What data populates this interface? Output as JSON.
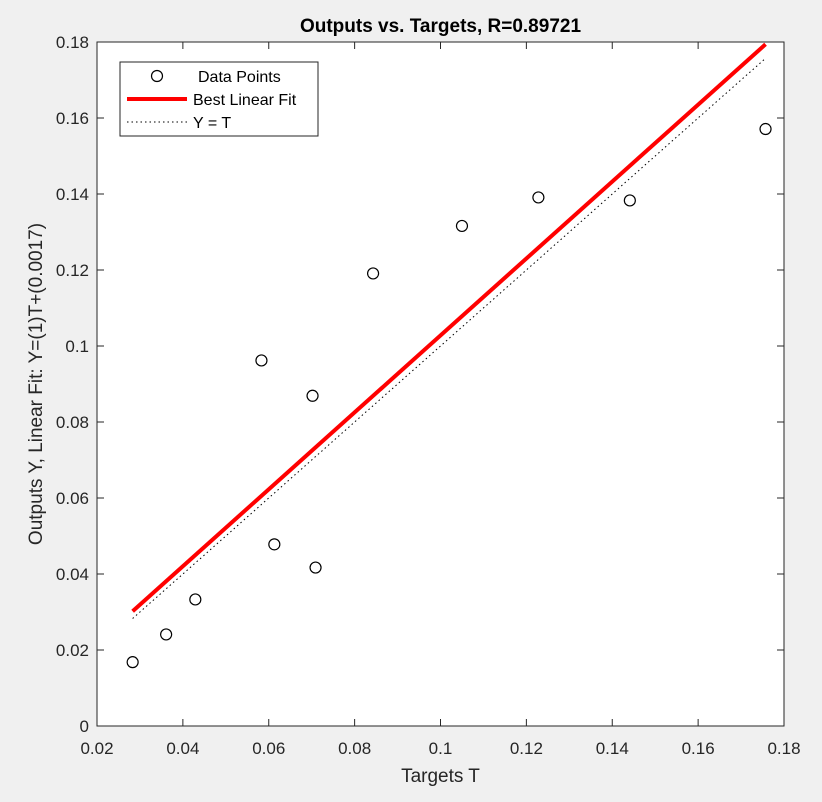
{
  "chart_data": {
    "type": "scatter",
    "title": "Outputs vs. Targets, R=0.89721",
    "xlabel": "Targets T",
    "ylabel": "Outputs Y,  Linear Fit: Y=(1)T+(0.0017)",
    "xlim": [
      0.02,
      0.18
    ],
    "ylim": [
      0,
      0.18
    ],
    "xticks": [
      0.02,
      0.04,
      0.06,
      0.08,
      0.1,
      0.12,
      0.14,
      0.16,
      0.18
    ],
    "xtick_labels": [
      "0.02",
      "0.04",
      "0.06",
      "0.08",
      "0.1",
      "0.12",
      "0.14",
      "0.16",
      "0.18"
    ],
    "yticks": [
      0,
      0.02,
      0.04,
      0.06,
      0.08,
      0.1,
      0.12,
      0.14,
      0.16,
      0.18
    ],
    "ytick_labels": [
      "0",
      "0.02",
      "0.04",
      "0.06",
      "0.08",
      "0.1",
      "0.12",
      "0.14",
      "0.16",
      "0.18"
    ],
    "grid": false,
    "legend_position": "top-left",
    "series": [
      {
        "name": "Data Points",
        "kind": "markers",
        "marker": "circle-open",
        "color": "#000000",
        "x": [
          0.0283,
          0.0361,
          0.0429,
          0.0583,
          0.0613,
          0.0702,
          0.0709,
          0.0843,
          0.105,
          0.1228,
          0.1441,
          0.1757
        ],
        "y": [
          0.0168,
          0.0241,
          0.0333,
          0.0962,
          0.0478,
          0.0869,
          0.0417,
          0.1191,
          0.1316,
          0.1391,
          0.1383,
          0.1571
        ]
      },
      {
        "name": "Best Linear Fit",
        "kind": "line",
        "color": "#ff0000",
        "x": [
          0.0283,
          0.1757
        ],
        "y": [
          0.0302,
          0.1794
        ]
      },
      {
        "name": "Y = T",
        "kind": "dotted-line",
        "color": "#000000",
        "x": [
          0.0283,
          0.1757
        ],
        "y": [
          0.0283,
          0.1757
        ]
      }
    ]
  }
}
